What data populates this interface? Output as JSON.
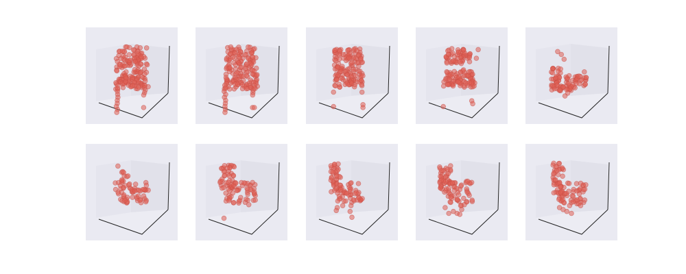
{
  "colors": {
    "figure_background": "#ffffff",
    "panel_background": "#eaeaf2",
    "point": "#e06055",
    "point_edge": "#c94f46",
    "axis": "#222222"
  },
  "chart_data": {
    "type": "scatter",
    "title": "",
    "grid": false,
    "panel_layout": {
      "rows": 2,
      "cols": 5
    },
    "panels": [
      {
        "row": 0,
        "col": 0,
        "view": "chair-front",
        "shapes": [
          {
            "kind": "blob",
            "u0": 0.33,
            "v0": 0.2,
            "u1": 0.67,
            "v1": 0.58,
            "n": 130
          },
          {
            "kind": "blob",
            "u0": 0.31,
            "v0": 0.56,
            "u1": 0.69,
            "v1": 0.64,
            "n": 30
          },
          {
            "kind": "leg",
            "u": 0.34,
            "v0": 0.6,
            "v1": 0.88,
            "n": 10
          },
          {
            "kind": "leg",
            "u": 0.64,
            "v0": 0.6,
            "v1": 0.7,
            "n": 5
          },
          {
            "kind": "dots",
            "pts": [
              [
                0.63,
                0.83
              ]
            ]
          }
        ]
      },
      {
        "row": 0,
        "col": 1,
        "view": "chair-front",
        "shapes": [
          {
            "kind": "blob",
            "u0": 0.33,
            "v0": 0.2,
            "u1": 0.67,
            "v1": 0.58,
            "n": 130
          },
          {
            "kind": "blob",
            "u0": 0.31,
            "v0": 0.56,
            "u1": 0.69,
            "v1": 0.64,
            "n": 30
          },
          {
            "kind": "leg",
            "u": 0.32,
            "v0": 0.6,
            "v1": 0.88,
            "n": 10
          },
          {
            "kind": "leg",
            "u": 0.63,
            "v0": 0.6,
            "v1": 0.7,
            "n": 5
          },
          {
            "kind": "dots",
            "pts": [
              [
                0.62,
                0.83
              ],
              [
                0.64,
                0.83
              ]
            ]
          }
        ]
      },
      {
        "row": 0,
        "col": 2,
        "view": "chair-front",
        "shapes": [
          {
            "kind": "blob",
            "u0": 0.31,
            "v0": 0.22,
            "u1": 0.62,
            "v1": 0.58,
            "n": 120
          },
          {
            "kind": "blob",
            "u0": 0.3,
            "v0": 0.54,
            "u1": 0.62,
            "v1": 0.62,
            "n": 25
          },
          {
            "kind": "dots",
            "pts": [
              [
                0.3,
                0.67
              ],
              [
                0.61,
                0.67
              ],
              [
                0.3,
                0.82
              ],
              [
                0.62,
                0.8
              ],
              [
                0.62,
                0.83
              ]
            ]
          }
        ]
      },
      {
        "row": 0,
        "col": 3,
        "view": "chair-three-quarter",
        "shapes": [
          {
            "kind": "blob",
            "u0": 0.33,
            "v0": 0.22,
            "u1": 0.61,
            "v1": 0.38,
            "n": 55
          },
          {
            "kind": "blob",
            "u0": 0.32,
            "v0": 0.45,
            "u1": 0.63,
            "v1": 0.6,
            "n": 60
          },
          {
            "kind": "blob",
            "u0": 0.29,
            "v0": 0.56,
            "u1": 0.67,
            "v1": 0.62,
            "n": 25
          },
          {
            "kind": "dots",
            "pts": [
              [
                0.68,
                0.23
              ],
              [
                0.66,
                0.32
              ],
              [
                0.58,
                0.46
              ],
              [
                0.52,
                0.44
              ],
              [
                0.3,
                0.82
              ],
              [
                0.61,
                0.76
              ],
              [
                0.62,
                0.79
              ]
            ]
          }
        ]
      },
      {
        "row": 0,
        "col": 4,
        "view": "chair-side",
        "shapes": [
          {
            "kind": "blob",
            "u0": 0.28,
            "v0": 0.42,
            "u1": 0.4,
            "v1": 0.66,
            "n": 28
          },
          {
            "kind": "blob",
            "u0": 0.3,
            "v0": 0.5,
            "u1": 0.66,
            "v1": 0.62,
            "n": 40
          },
          {
            "kind": "blob",
            "u0": 0.28,
            "v0": 0.58,
            "u1": 0.54,
            "v1": 0.66,
            "n": 22
          },
          {
            "kind": "dots",
            "pts": [
              [
                0.35,
                0.25
              ],
              [
                0.39,
                0.28
              ],
              [
                0.42,
                0.33
              ],
              [
                0.64,
                0.46
              ],
              [
                0.66,
                0.52
              ],
              [
                0.46,
                0.68
              ],
              [
                0.43,
                0.71
              ]
            ]
          }
        ]
      },
      {
        "row": 1,
        "col": 0,
        "view": "chair-top",
        "shapes": [
          {
            "kind": "blob",
            "u0": 0.32,
            "v0": 0.4,
            "u1": 0.66,
            "v1": 0.63,
            "n": 55
          },
          {
            "kind": "blob",
            "u0": 0.38,
            "v0": 0.28,
            "u1": 0.47,
            "v1": 0.42,
            "n": 10
          },
          {
            "kind": "dots",
            "pts": [
              [
                0.35,
                0.23
              ],
              [
                0.66,
                0.43
              ],
              [
                0.68,
                0.48
              ],
              [
                0.63,
                0.54
              ]
            ]
          }
        ]
      },
      {
        "row": 1,
        "col": 1,
        "view": "chair-side",
        "shapes": [
          {
            "kind": "blob",
            "u0": 0.26,
            "v0": 0.22,
            "u1": 0.43,
            "v1": 0.46,
            "n": 40
          },
          {
            "kind": "blob",
            "u0": 0.32,
            "v0": 0.4,
            "u1": 0.66,
            "v1": 0.62,
            "n": 50
          },
          {
            "kind": "dots",
            "pts": [
              [
                0.31,
                0.77
              ],
              [
                0.58,
                0.63
              ],
              [
                0.64,
                0.5
              ],
              [
                0.62,
                0.4
              ]
            ]
          }
        ]
      },
      {
        "row": 1,
        "col": 2,
        "view": "chair-side",
        "shapes": [
          {
            "kind": "blob",
            "u0": 0.27,
            "v0": 0.2,
            "u1": 0.38,
            "v1": 0.5,
            "n": 40
          },
          {
            "kind": "blob",
            "u0": 0.34,
            "v0": 0.4,
            "u1": 0.62,
            "v1": 0.62,
            "n": 45
          },
          {
            "kind": "dots",
            "pts": [
              [
                0.34,
                0.66
              ],
              [
                0.4,
                0.64
              ],
              [
                0.33,
                0.69
              ],
              [
                0.48,
                0.7
              ],
              [
                0.49,
                0.64
              ],
              [
                0.5,
                0.76
              ]
            ]
          }
        ]
      },
      {
        "row": 1,
        "col": 3,
        "view": "chair-side",
        "shapes": [
          {
            "kind": "blob",
            "u0": 0.26,
            "v0": 0.2,
            "u1": 0.38,
            "v1": 0.5,
            "n": 45
          },
          {
            "kind": "blob",
            "u0": 0.35,
            "v0": 0.38,
            "u1": 0.62,
            "v1": 0.64,
            "n": 45
          },
          {
            "kind": "dots",
            "pts": [
              [
                0.32,
                0.66
              ],
              [
                0.36,
                0.72
              ],
              [
                0.41,
                0.7
              ],
              [
                0.5,
                0.68
              ],
              [
                0.53,
                0.63
              ],
              [
                0.45,
                0.72
              ],
              [
                0.48,
                0.73
              ]
            ]
          }
        ]
      },
      {
        "row": 1,
        "col": 4,
        "view": "chair-side",
        "shapes": [
          {
            "kind": "blob",
            "u0": 0.3,
            "v0": 0.2,
            "u1": 0.42,
            "v1": 0.52,
            "n": 45
          },
          {
            "kind": "blob",
            "u0": 0.36,
            "v0": 0.4,
            "u1": 0.66,
            "v1": 0.62,
            "n": 45
          },
          {
            "kind": "dots",
            "pts": [
              [
                0.37,
                0.66
              ],
              [
                0.41,
                0.68
              ],
              [
                0.45,
                0.7
              ],
              [
                0.48,
                0.64
              ],
              [
                0.52,
                0.6
              ],
              [
                0.56,
                0.58
              ],
              [
                0.58,
                0.62
              ],
              [
                0.6,
                0.64
              ],
              [
                0.5,
                0.72
              ]
            ]
          }
        ]
      }
    ]
  }
}
